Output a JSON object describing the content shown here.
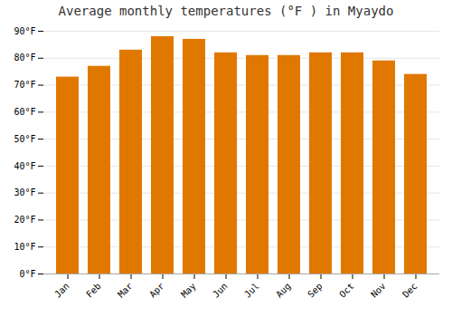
{
  "chart_data": {
    "type": "bar",
    "title": "Average monthly temperatures (°F ) in Myaydo",
    "categories": [
      "Jan",
      "Feb",
      "Mar",
      "Apr",
      "May",
      "Jun",
      "Jul",
      "Aug",
      "Sep",
      "Oct",
      "Nov",
      "Dec"
    ],
    "values": [
      73,
      77,
      83,
      88,
      87,
      82,
      81,
      81,
      82,
      82,
      79,
      74
    ],
    "color": "#E07800",
    "ylim": [
      0,
      90
    ],
    "yticks": [
      {
        "value": 0,
        "label": "0°F"
      },
      {
        "value": 10,
        "label": "10°F"
      },
      {
        "value": 20,
        "label": "20°F"
      },
      {
        "value": 30,
        "label": "30°F"
      },
      {
        "value": 40,
        "label": "40°F"
      },
      {
        "value": 50,
        "label": "50°F"
      },
      {
        "value": 60,
        "label": "60°F"
      },
      {
        "value": 70,
        "label": "70°F"
      },
      {
        "value": 80,
        "label": "80°F"
      },
      {
        "value": 90,
        "label": "90°F"
      }
    ],
    "grid": true
  }
}
